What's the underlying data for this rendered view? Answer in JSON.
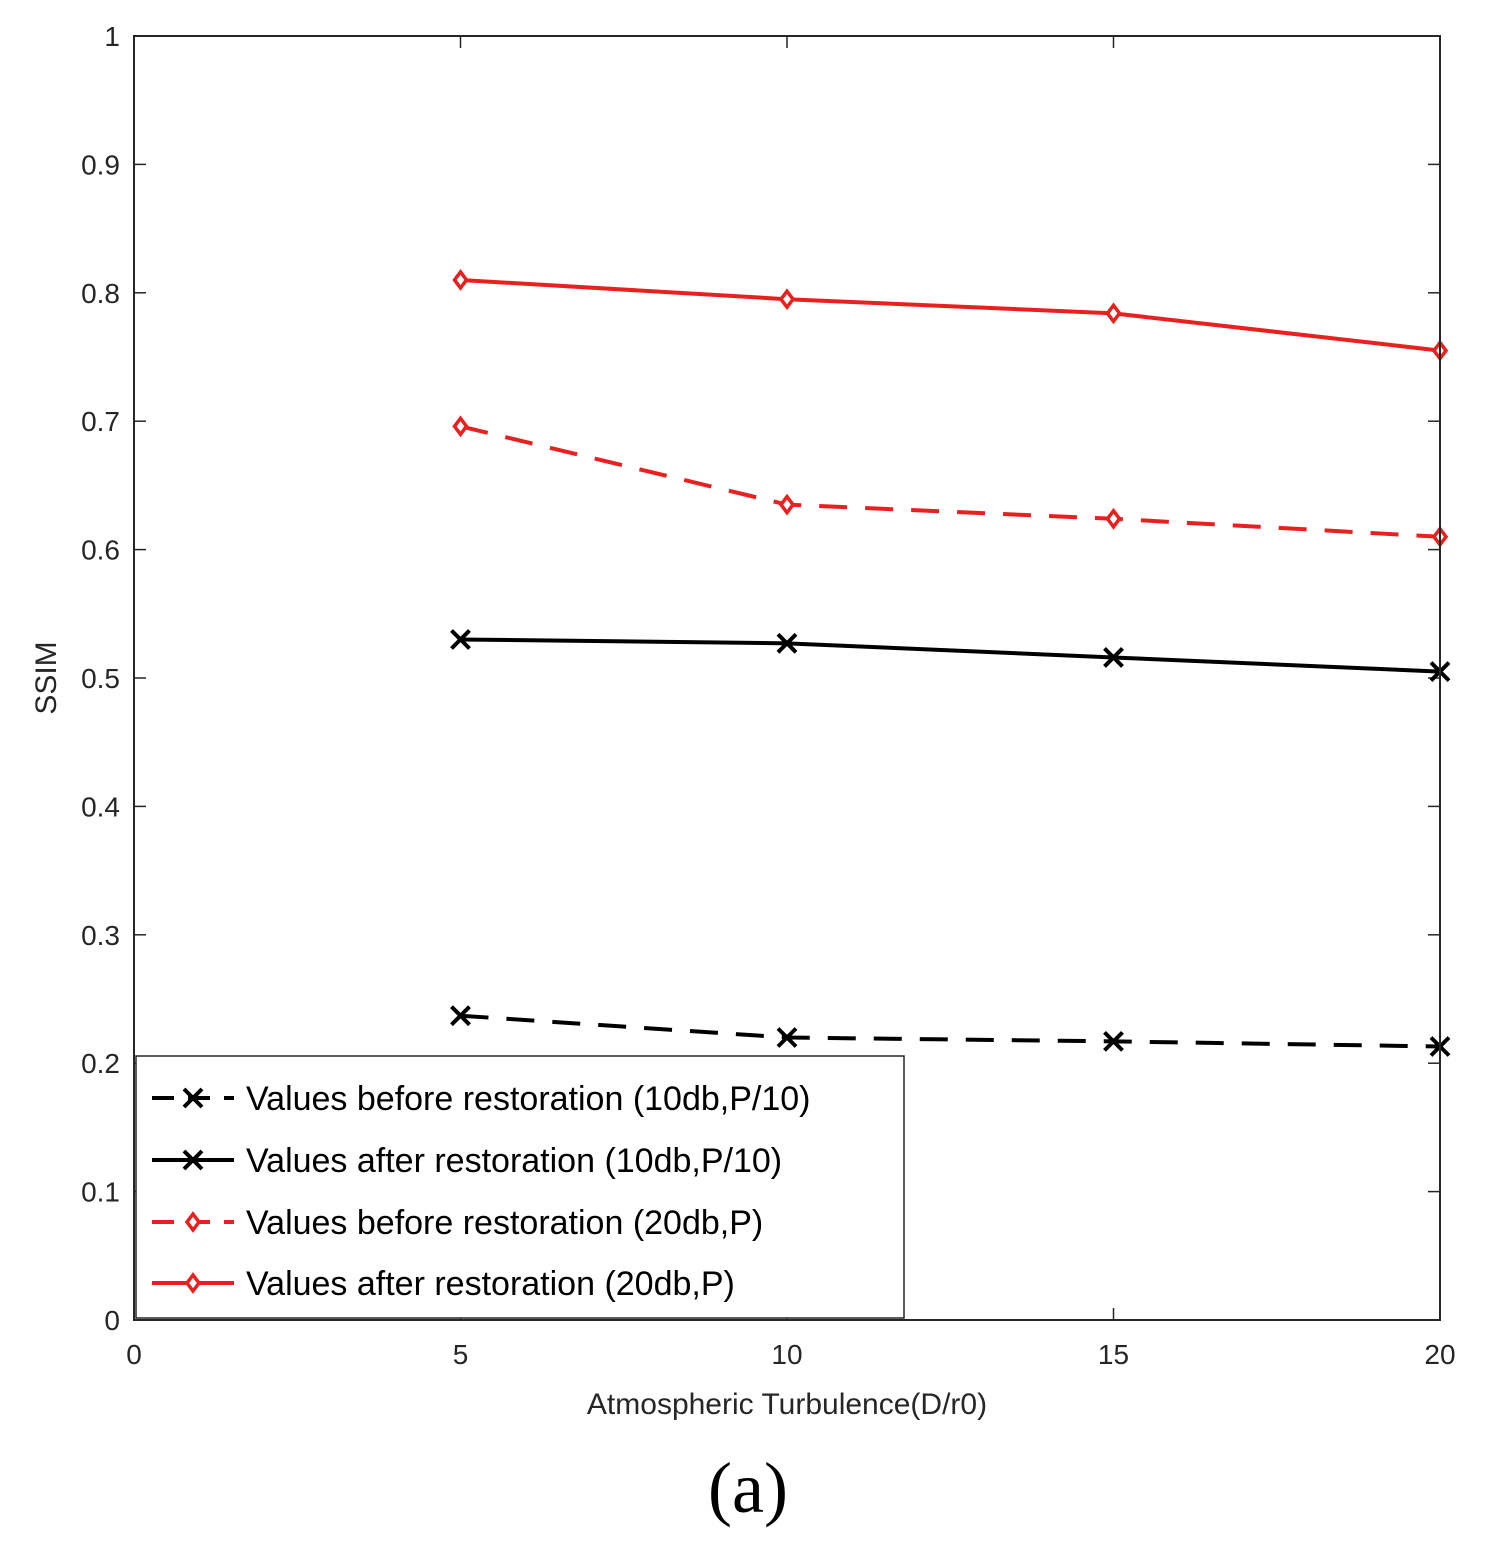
{
  "chart_data": {
    "type": "line",
    "title": "",
    "xlabel": "Atmospheric Turbulence(D/r0)",
    "ylabel": "SSIM",
    "xlim": [
      0,
      20
    ],
    "ylim": [
      0,
      1
    ],
    "xticks": [
      0,
      5,
      10,
      15,
      20
    ],
    "yticks": [
      0,
      0.1,
      0.2,
      0.3,
      0.4,
      0.5,
      0.6,
      0.7,
      0.8,
      0.9,
      1
    ],
    "x": [
      5,
      10,
      15,
      20
    ],
    "grid": false,
    "legend_position": "bottom-left",
    "series": [
      {
        "name": "Values before restoration (10db,P/10)",
        "values": [
          0.237,
          0.22,
          0.217,
          0.213
        ],
        "color": "#000000",
        "line": "dashed",
        "marker": "x"
      },
      {
        "name": "Values after restoration (10db,P/10)",
        "values": [
          0.53,
          0.527,
          0.516,
          0.505
        ],
        "color": "#000000",
        "line": "solid",
        "marker": "x"
      },
      {
        "name": "Values before restoration (20db,P)",
        "values": [
          0.696,
          0.635,
          0.624,
          0.61
        ],
        "color": "#e8201e",
        "line": "dashed",
        "marker": "diamond"
      },
      {
        "name": "Values after restoration (20db,P)",
        "values": [
          0.81,
          0.795,
          0.784,
          0.755
        ],
        "color": "#e8201e",
        "line": "solid",
        "marker": "diamond"
      }
    ]
  },
  "panel_label": "(a)"
}
